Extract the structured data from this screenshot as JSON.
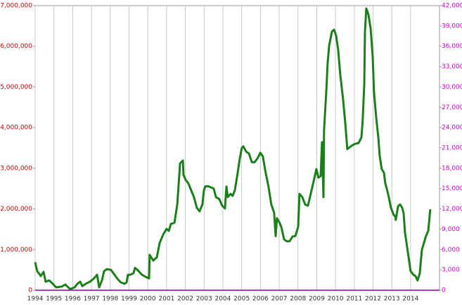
{
  "chart_data": {
    "type": "line",
    "x": [
      1994.0,
      1994.11,
      1994.3,
      1994.45,
      1994.56,
      1994.75,
      1994.94,
      1995.12,
      1995.42,
      1995.61,
      1995.76,
      1995.87,
      1996.1,
      1996.25,
      1996.4,
      1996.51,
      1996.7,
      1996.92,
      1997.11,
      1997.3,
      1997.41,
      1997.56,
      1997.67,
      1997.82,
      1998.04,
      1998.23,
      1998.42,
      1998.57,
      1998.76,
      1998.87,
      1998.94,
      1999.06,
      1999.24,
      1999.32,
      1999.47,
      1999.69,
      1999.88,
      2000.07,
      2000.1,
      2000.29,
      2000.48,
      2000.63,
      2000.82,
      2001.0,
      2001.12,
      2001.23,
      2001.42,
      2001.57,
      2001.72,
      2001.87,
      2001.9,
      2002.01,
      2002.16,
      2002.31,
      2002.46,
      2002.61,
      2002.76,
      2002.91,
      2002.99,
      2003.06,
      2003.21,
      2003.36,
      2003.51,
      2003.63,
      2003.81,
      2003.96,
      2004.11,
      2004.19,
      2004.26,
      2004.41,
      2004.52,
      2004.64,
      2004.79,
      2004.9,
      2005.01,
      2005.09,
      2005.24,
      2005.39,
      2005.54,
      2005.69,
      2005.84,
      2005.99,
      2006.13,
      2006.28,
      2006.43,
      2006.58,
      2006.73,
      2006.81,
      2006.88,
      2007.0,
      2007.11,
      2007.26,
      2007.41,
      2007.56,
      2007.71,
      2007.86,
      2008.01,
      2008.08,
      2008.23,
      2008.38,
      2008.53,
      2008.64,
      2008.83,
      2008.98,
      2009.09,
      2009.21,
      2009.28,
      2009.36,
      2009.39,
      2009.51,
      2009.58,
      2009.66,
      2009.81,
      2009.92,
      2010.03,
      2010.14,
      2010.25,
      2010.4,
      2010.52,
      2010.63,
      2010.85,
      2011.04,
      2011.23,
      2011.38,
      2011.45,
      2011.53,
      2011.57,
      2011.64,
      2011.75,
      2011.87,
      2011.98,
      2012.05,
      2012.16,
      2012.28,
      2012.35,
      2012.46,
      2012.58,
      2012.65,
      2012.73,
      2012.84,
      2012.95,
      2013.1,
      2013.18,
      2013.21,
      2013.33,
      2013.44,
      2013.55,
      2013.63,
      2013.7,
      2013.85,
      2014.0,
      2014.15,
      2014.26,
      2014.37,
      2014.49,
      2014.6,
      2014.71,
      2014.82,
      2014.94,
      2015.05
    ],
    "series": [
      {
        "color": "#1a7f1a",
        "values": [
          690000,
          470000,
          350000,
          450000,
          210000,
          240000,
          160000,
          70000,
          90000,
          140000,
          70000,
          30000,
          70000,
          160000,
          210000,
          100000,
          160000,
          210000,
          280000,
          380000,
          70000,
          240000,
          470000,
          520000,
          500000,
          380000,
          260000,
          190000,
          160000,
          190000,
          380000,
          380000,
          420000,
          550000,
          490000,
          380000,
          330000,
          290000,
          870000,
          730000,
          810000,
          1160000,
          1370000,
          1510000,
          1460000,
          1630000,
          1660000,
          2110000,
          3120000,
          3190000,
          2840000,
          2720000,
          2630000,
          2460000,
          2290000,
          2030000,
          1940000,
          2110000,
          2460000,
          2550000,
          2560000,
          2530000,
          2500000,
          2290000,
          2240000,
          2080000,
          2010000,
          2550000,
          2290000,
          2370000,
          2320000,
          2460000,
          2890000,
          3240000,
          3500000,
          3540000,
          3410000,
          3360000,
          3150000,
          3150000,
          3240000,
          3380000,
          3290000,
          2890000,
          2550000,
          2110000,
          1910000,
          1330000,
          1770000,
          1680000,
          1560000,
          1250000,
          1200000,
          1210000,
          1320000,
          1330000,
          1560000,
          2370000,
          2290000,
          2110000,
          2080000,
          2290000,
          2670000,
          2980000,
          2770000,
          2810000,
          3640000,
          2290000,
          3930000,
          4890000,
          5580000,
          6010000,
          6360000,
          6410000,
          6270000,
          5930000,
          5320000,
          4710000,
          4110000,
          3470000,
          3550000,
          3600000,
          3620000,
          3760000,
          4190000,
          5060000,
          6360000,
          6930000,
          6790000,
          6450000,
          5750000,
          4890000,
          4280000,
          3760000,
          3330000,
          2980000,
          2890000,
          2630000,
          2500000,
          2290000,
          2030000,
          1850000,
          1820000,
          1730000,
          2060000,
          2110000,
          2030000,
          1890000,
          1420000,
          950000,
          470000,
          380000,
          350000,
          240000,
          420000,
          990000,
          1160000,
          1330000,
          1460000,
          1990000
        ]
      }
    ],
    "xlim": [
      1994,
      2015.54
    ],
    "xticks": [
      1994,
      1995,
      1996,
      1997,
      1998,
      1999,
      2000,
      2001,
      2002,
      2003,
      2004,
      2005,
      2006,
      2007,
      2008,
      2009,
      2010,
      2011,
      2012,
      2013,
      2014
    ],
    "ylim": [
      0,
      7000000
    ],
    "yticks": [
      0,
      {
        "value": 1000000,
        "label": "1,000,000"
      },
      {
        "value": 2000000,
        "label": "2,000,000"
      },
      {
        "value": 3000000,
        "label": "3,000,000"
      },
      {
        "value": 4000000,
        "label": "4,000,000"
      },
      {
        "value": 5000000,
        "label": "5,000,000"
      },
      {
        "value": 6000000,
        "label": "6,000,000"
      },
      {
        "value": 7000000,
        "label": "7,000,000"
      }
    ],
    "y2lim": [
      0,
      42000
    ],
    "y2ticks": [
      0,
      {
        "value": 3000,
        "label": "3,000"
      },
      {
        "value": 6000,
        "label": "6,000"
      },
      {
        "value": 9000,
        "label": "9,000"
      },
      {
        "value": 12000,
        "label": "12,000"
      },
      {
        "value": 15000,
        "label": "15,000"
      },
      {
        "value": 18000,
        "label": "18,000"
      },
      {
        "value": 21000,
        "label": "21,000"
      },
      {
        "value": 24000,
        "label": "24,000"
      },
      {
        "value": 27000,
        "label": "27,000"
      },
      {
        "value": 30000,
        "label": "30,000"
      },
      {
        "value": 33000,
        "label": "33,000"
      },
      {
        "value": 36000,
        "label": "36,000"
      },
      {
        "value": 39000,
        "label": "39,000"
      },
      {
        "value": 42000,
        "label": "42,000"
      }
    ],
    "y_color": "#cc0000",
    "y2_color": "#cc00cc",
    "grid": true
  }
}
